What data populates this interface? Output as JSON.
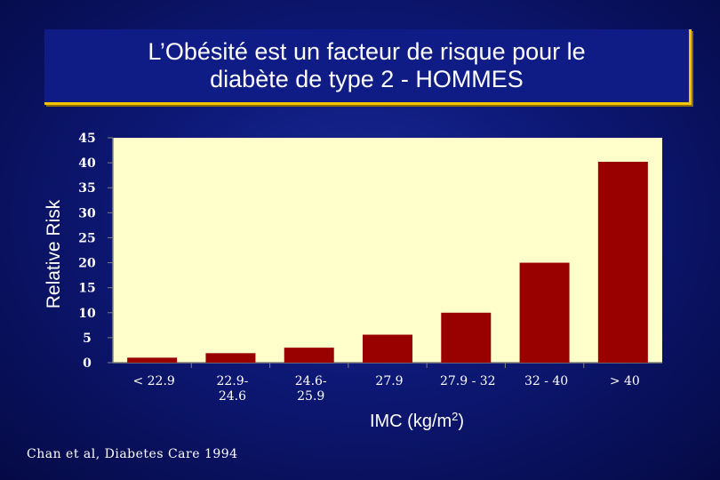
{
  "title": {
    "line1": "L’Obésité est un facteur de risque pour le",
    "line2": "diabète de type 2 - HOMMES"
  },
  "source": "Chan et al, Diabetes Care 1994",
  "colors": {
    "bar": "#990000",
    "plot_background": "#ffffcc",
    "axis_text": "#ffffff",
    "title_border": "#f5c400"
  },
  "chart_data": {
    "type": "bar",
    "ylabel": "Relative Risk",
    "xlabel": "IMC (kg/m2)",
    "xlabel_parts": {
      "base": "IMC (kg/m",
      "sup": "2",
      "tail": ")"
    },
    "categories": [
      [
        "< 22.9"
      ],
      [
        "22.9-",
        "24.6"
      ],
      [
        "24.6-",
        "25.9"
      ],
      [
        "27.9"
      ],
      [
        "27.9 - 32"
      ],
      [
        "32 - 40"
      ],
      [
        "> 40"
      ]
    ],
    "values": [
      1.0,
      1.9,
      3.0,
      5.6,
      10.0,
      20.0,
      40.2
    ],
    "ylim": [
      0,
      45
    ],
    "yticks": [
      0,
      5,
      10,
      15,
      20,
      25,
      30,
      35,
      40,
      45
    ],
    "grid": false,
    "legend": "none"
  }
}
